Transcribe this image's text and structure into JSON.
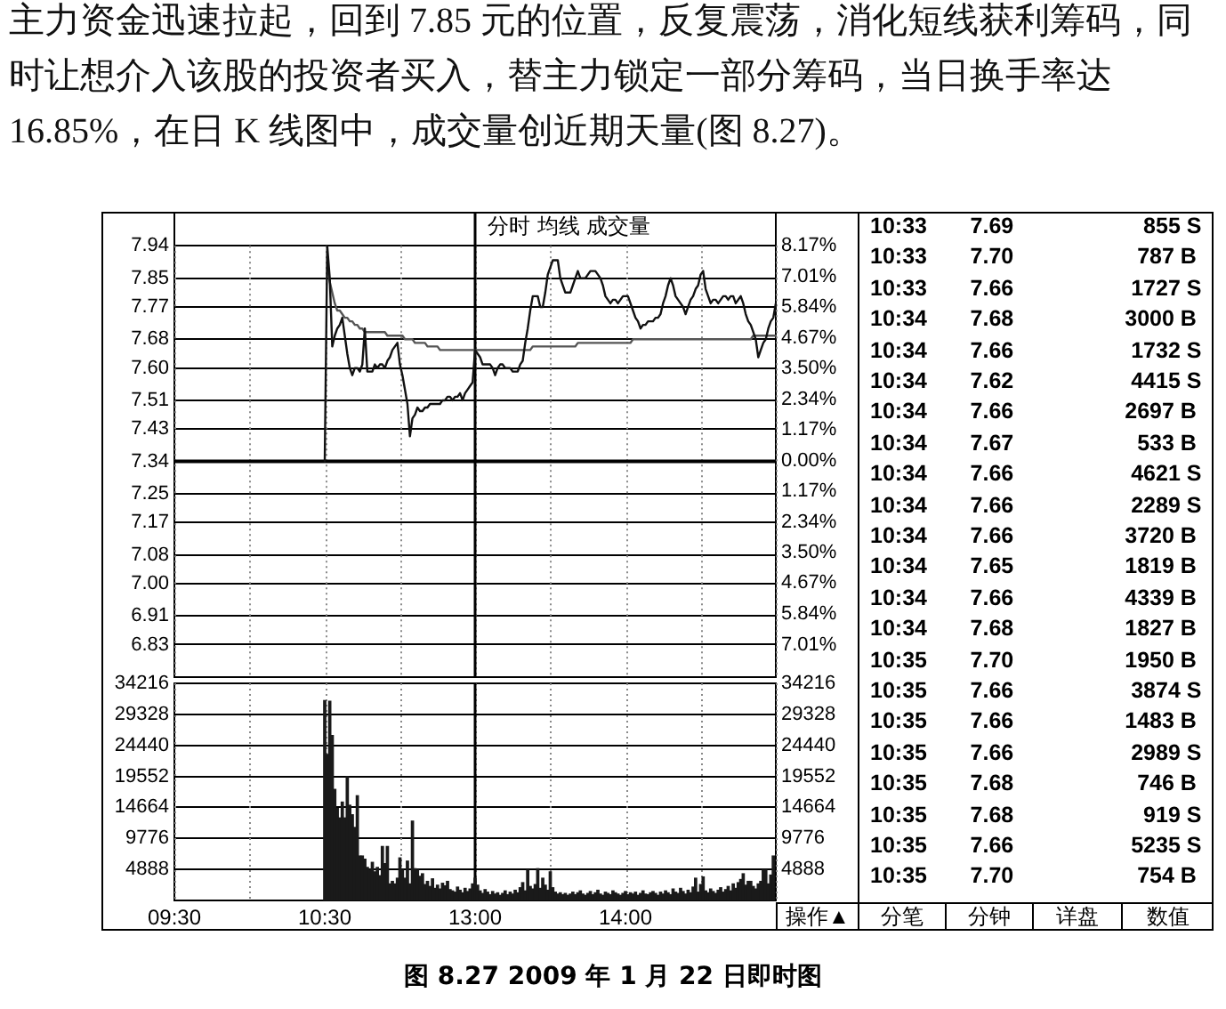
{
  "chart_data": [
    {
      "type": "line",
      "title": "图 8.27 2009 年 1 月 22 日即时图",
      "annotations": [
        "主力资金迅速拉起，回到 7.85 元的位置，反复震荡，消化短线获利筹码，同时让想介入该股的投资者买入，替主力锁定一部分筹码，当日换手率达 16.85%，在日 K 线图中，成交量创近期天量(图 8.27)。",
        "分时 均线 成交量"
      ],
      "categories": [
        "09:30",
        null,
        null,
        null,
        null,
        null,
        null,
        null,
        null,
        null,
        null,
        null,
        null,
        null,
        null,
        null,
        null,
        null,
        null,
        null,
        null,
        null,
        null,
        null,
        null,
        null,
        null,
        null,
        null,
        null,
        null,
        null,
        null,
        null,
        null,
        null,
        null,
        null,
        null,
        null,
        null,
        null,
        null,
        null,
        null,
        null,
        null,
        null,
        null,
        null,
        null,
        null,
        null,
        null,
        null,
        null,
        null,
        null,
        null,
        null,
        "10:30",
        null,
        null,
        null,
        null,
        null,
        null,
        null,
        null,
        null,
        null,
        null,
        null,
        null,
        null,
        null,
        null,
        null,
        null,
        null,
        null,
        null,
        null,
        null,
        null,
        null,
        null,
        null,
        null,
        null,
        null,
        null,
        null,
        null,
        null,
        null,
        null,
        null,
        null,
        null,
        null,
        null,
        null,
        null,
        null,
        null,
        null,
        null,
        null,
        null,
        null,
        null,
        null,
        null,
        null,
        null,
        null,
        null,
        null,
        null,
        "13:00",
        null,
        null,
        null,
        null,
        null,
        null,
        null,
        null,
        null,
        null,
        null,
        null,
        null,
        null,
        null,
        null,
        null,
        null,
        null,
        null,
        null,
        null,
        null,
        null,
        null,
        null,
        null,
        null,
        null,
        null,
        null,
        null,
        null,
        null,
        null,
        null,
        null,
        null,
        null,
        null,
        null,
        null,
        null,
        null,
        null,
        null,
        null,
        null,
        null,
        null,
        null,
        null,
        null,
        null,
        null,
        null,
        null,
        null,
        null,
        "14:00",
        null,
        null,
        null,
        null,
        null,
        null,
        null,
        null,
        null,
        null,
        null,
        null,
        null,
        null,
        null,
        null,
        null,
        null,
        null,
        null,
        null,
        null,
        null,
        null,
        null,
        null,
        null,
        null,
        null,
        null,
        null,
        null,
        null,
        null,
        null,
        null,
        null,
        null,
        null,
        null,
        null,
        null,
        null,
        null,
        null,
        null,
        null,
        null,
        null,
        null,
        null,
        null,
        null,
        null,
        null,
        null,
        null,
        null,
        null,
        null
      ],
      "ylim": [
        6.74,
        8.03
      ],
      "yticks": [
        6.83,
        6.91,
        {
          "value": 7,
          "label": "7.00"
        },
        7.08,
        7.17,
        7.25,
        7.34,
        7.43,
        7.51,
        {
          "value": 7.6,
          "label": "7.60"
        },
        7.68,
        7.77,
        7.85,
        7.94
      ],
      "y2lim": [
        -8.24,
        9.4
      ],
      "y2ticks": [
        {
          "value": -7.01,
          "label": "7.01%"
        },
        {
          "value": -5.84,
          "label": "5.84%"
        },
        {
          "value": -4.67,
          "label": "4.67%"
        },
        {
          "value": -3.5,
          "label": "3.50%"
        },
        {
          "value": -2.34,
          "label": "2.34%"
        },
        {
          "value": -1.17,
          "label": "1.17%"
        },
        {
          "value": 0,
          "label": "0.00%"
        },
        {
          "value": 1.17,
          "label": "1.17%"
        },
        {
          "value": 2.34,
          "label": "2.34%"
        },
        {
          "value": 3.5,
          "label": "3.50%"
        },
        {
          "value": 4.67,
          "label": "4.67%"
        },
        {
          "value": 5.84,
          "label": "5.84%"
        },
        {
          "value": 7.01,
          "label": "7.01%"
        },
        {
          "value": 8.17,
          "label": "8.17%"
        }
      ],
      "tick_labels": "y",
      "grid": true,
      "marker": "none",
      "line_style": "solid",
      "ref_lines": [
        {
          "axis": "y",
          "value": 7.34
        },
        {
          "axis": "x",
          "value": "13:00"
        }
      ],
      "series": [
        {
          "color": "#111111",
          "values": [
            null,
            null,
            null,
            null,
            null,
            null,
            null,
            null,
            null,
            null,
            null,
            null,
            null,
            null,
            null,
            null,
            null,
            null,
            null,
            null,
            null,
            null,
            null,
            null,
            null,
            null,
            null,
            null,
            null,
            null,
            null,
            null,
            null,
            null,
            null,
            null,
            null,
            null,
            null,
            null,
            null,
            null,
            null,
            null,
            null,
            null,
            null,
            null,
            null,
            null,
            null,
            null,
            null,
            null,
            null,
            null,
            null,
            null,
            null,
            null,
            7.34,
            7.94,
            7.85,
            7.66,
            7.69,
            7.71,
            7.72,
            7.74,
            7.69,
            7.64,
            7.6,
            7.58,
            7.6,
            7.6,
            7.59,
            7.61,
            7.71,
            7.59,
            7.59,
            7.59,
            7.61,
            7.6,
            7.61,
            7.61,
            7.6,
            7.62,
            7.63,
            7.65,
            7.66,
            7.67,
            7.61,
            7.58,
            7.54,
            7.5,
            7.41,
            7.46,
            7.47,
            7.49,
            7.48,
            7.48,
            7.49,
            7.49,
            7.5,
            7.5,
            7.5,
            7.5,
            7.5,
            7.51,
            7.51,
            7.52,
            7.52,
            7.51,
            7.52,
            7.52,
            7.53,
            7.51,
            7.53,
            7.54,
            7.55,
            7.56,
            7.65,
            7.64,
            7.63,
            7.61,
            7.61,
            7.61,
            7.61,
            7.6,
            7.58,
            7.6,
            7.61,
            7.61,
            7.6,
            7.6,
            7.6,
            7.59,
            7.59,
            7.59,
            7.61,
            7.62,
            7.67,
            7.71,
            7.76,
            7.8,
            7.8,
            7.8,
            7.77,
            7.77,
            7.81,
            7.86,
            7.88,
            7.9,
            7.9,
            7.9,
            7.85,
            7.83,
            7.81,
            7.81,
            7.81,
            7.83,
            7.85,
            7.87,
            7.85,
            7.85,
            7.85,
            7.86,
            7.87,
            7.87,
            7.87,
            7.86,
            7.85,
            7.83,
            7.8,
            7.79,
            7.78,
            7.79,
            7.79,
            7.78,
            7.79,
            7.8,
            7.8,
            7.8,
            7.78,
            7.76,
            7.74,
            7.73,
            7.71,
            7.72,
            7.72,
            7.73,
            7.73,
            7.73,
            7.74,
            7.74,
            7.75,
            7.78,
            7.8,
            7.83,
            7.85,
            7.83,
            7.8,
            7.79,
            7.78,
            7.77,
            7.75,
            7.77,
            7.79,
            7.8,
            7.82,
            7.83,
            7.86,
            7.87,
            7.82,
            7.8,
            7.78,
            7.79,
            7.79,
            7.78,
            7.79,
            7.8,
            7.8,
            7.79,
            7.8,
            7.8,
            7.78,
            7.79,
            7.8,
            7.78,
            7.75,
            7.73,
            7.72,
            7.7,
            7.68,
            7.63,
            7.65,
            7.67,
            7.68,
            7.71,
            7.73,
            7.74,
            7.78
          ]
        },
        {
          "color": "#555555",
          "values": [
            null,
            null,
            null,
            null,
            null,
            null,
            null,
            null,
            null,
            null,
            null,
            null,
            null,
            null,
            null,
            null,
            null,
            null,
            null,
            null,
            null,
            null,
            null,
            null,
            null,
            null,
            null,
            null,
            null,
            null,
            null,
            null,
            null,
            null,
            null,
            null,
            null,
            null,
            null,
            null,
            null,
            null,
            null,
            null,
            null,
            null,
            null,
            null,
            null,
            null,
            null,
            null,
            null,
            null,
            null,
            null,
            null,
            null,
            null,
            null,
            null,
            7.88,
            7.84,
            7.81,
            7.78,
            7.76,
            7.76,
            7.75,
            7.74,
            7.74,
            7.73,
            7.73,
            7.72,
            7.72,
            7.71,
            7.71,
            7.7,
            7.7,
            7.7,
            7.7,
            7.7,
            7.7,
            7.7,
            7.7,
            7.7,
            7.69,
            7.69,
            7.69,
            7.69,
            7.69,
            7.69,
            7.69,
            7.68,
            7.68,
            7.68,
            7.68,
            7.67,
            7.67,
            7.67,
            7.67,
            7.67,
            7.66,
            7.66,
            7.66,
            7.66,
            7.66,
            7.65,
            7.65,
            7.65,
            7.65,
            7.65,
            7.65,
            7.65,
            7.65,
            7.65,
            7.65,
            7.65,
            7.65,
            7.65,
            7.65,
            7.65,
            7.65,
            7.65,
            7.65,
            7.65,
            7.65,
            7.65,
            7.65,
            7.65,
            7.65,
            7.65,
            7.65,
            7.65,
            7.65,
            7.65,
            7.65,
            7.65,
            7.65,
            7.65,
            7.65,
            7.65,
            7.65,
            7.65,
            7.66,
            7.66,
            7.66,
            7.66,
            7.66,
            7.66,
            7.66,
            7.66,
            7.66,
            7.66,
            7.66,
            7.66,
            7.66,
            7.66,
            7.66,
            7.66,
            7.66,
            7.66,
            7.67,
            7.67,
            7.67,
            7.67,
            7.67,
            7.67,
            7.67,
            7.67,
            7.67,
            7.67,
            7.67,
            7.67,
            7.67,
            7.67,
            7.67,
            7.67,
            7.67,
            7.67,
            7.67,
            7.67,
            7.67,
            7.67,
            7.68,
            7.68,
            7.68,
            7.68,
            7.68,
            7.68,
            7.68,
            7.68,
            7.68,
            7.68,
            7.68,
            7.68,
            7.68,
            7.68,
            7.68,
            7.68,
            7.68,
            7.68,
            7.68,
            7.68,
            7.68,
            7.68,
            7.68,
            7.68,
            7.68,
            7.68,
            7.68,
            7.68,
            7.68,
            7.68,
            7.68,
            7.68,
            7.68,
            7.68,
            7.68,
            7.68,
            7.68,
            7.68,
            7.68,
            7.68,
            7.68,
            7.68,
            7.68,
            7.68,
            7.68,
            7.68,
            7.68,
            7.68,
            7.69,
            7.69,
            7.69,
            7.69,
            7.69,
            7.69,
            7.69,
            7.69,
            7.69,
            7.69
          ]
        }
      ]
    },
    {
      "type": "bar",
      "categories": [
        "09:30",
        null,
        null,
        null,
        null,
        null,
        null,
        null,
        null,
        null,
        null,
        null,
        null,
        null,
        null,
        null,
        null,
        null,
        null,
        null,
        null,
        null,
        null,
        null,
        null,
        null,
        null,
        null,
        null,
        null,
        null,
        null,
        null,
        null,
        null,
        null,
        null,
        null,
        null,
        null,
        null,
        null,
        null,
        null,
        null,
        null,
        null,
        null,
        null,
        null,
        null,
        null,
        null,
        null,
        null,
        null,
        null,
        null,
        null,
        null,
        "10:30",
        null,
        null,
        null,
        null,
        null,
        null,
        null,
        null,
        null,
        null,
        null,
        null,
        null,
        null,
        null,
        null,
        null,
        null,
        null,
        null,
        null,
        null,
        null,
        null,
        null,
        null,
        null,
        null,
        null,
        null,
        null,
        null,
        null,
        null,
        null,
        null,
        null,
        null,
        null,
        null,
        null,
        null,
        null,
        null,
        null,
        null,
        null,
        null,
        null,
        null,
        null,
        null,
        null,
        null,
        null,
        null,
        null,
        null,
        null,
        "13:00",
        null,
        null,
        null,
        null,
        null,
        null,
        null,
        null,
        null,
        null,
        null,
        null,
        null,
        null,
        null,
        null,
        null,
        null,
        null,
        null,
        null,
        null,
        null,
        null,
        null,
        null,
        null,
        null,
        null,
        null,
        null,
        null,
        null,
        null,
        null,
        null,
        null,
        null,
        null,
        null,
        null,
        null,
        null,
        null,
        null,
        null,
        null,
        null,
        null,
        null,
        null,
        null,
        null,
        null,
        null,
        null,
        null,
        null,
        null,
        "14:00",
        null,
        null,
        null,
        null,
        null,
        null,
        null,
        null,
        null,
        null,
        null,
        null,
        null,
        null,
        null,
        null,
        null,
        null,
        null,
        null,
        null,
        null,
        null,
        null,
        null,
        null,
        null,
        null,
        null,
        null,
        null,
        null,
        null,
        null,
        null,
        null,
        null,
        null,
        null,
        null,
        null,
        null,
        null,
        null,
        null,
        null,
        null,
        null,
        null,
        null,
        null,
        null,
        null,
        null,
        null,
        null,
        null,
        null,
        null,
        null
      ],
      "ylim": [
        0,
        34216
      ],
      "yticks": [
        4888,
        9776,
        14664,
        19552,
        24440,
        29328,
        34216
      ],
      "y2lim": [
        0,
        34216
      ],
      "y2ticks": [
        4888,
        9776,
        14664,
        19552,
        24440,
        29328,
        34216
      ],
      "grid": true,
      "ref_lines": [
        {
          "axis": "x",
          "value": "13:00"
        }
      ],
      "series": [
        {
          "color": "#1a1a1a",
          "values": [
            null,
            null,
            null,
            null,
            null,
            null,
            null,
            null,
            null,
            null,
            null,
            null,
            null,
            null,
            null,
            null,
            null,
            null,
            null,
            null,
            null,
            null,
            null,
            null,
            null,
            null,
            null,
            null,
            null,
            null,
            null,
            null,
            null,
            null,
            null,
            null,
            null,
            null,
            null,
            null,
            null,
            null,
            null,
            null,
            null,
            null,
            null,
            null,
            null,
            null,
            null,
            null,
            null,
            null,
            null,
            null,
            null,
            null,
            null,
            null,
            31500,
            23000,
            31400,
            26000,
            17500,
            14500,
            13000,
            15500,
            13000,
            19500,
            15000,
            13500,
            11500,
            16500,
            7000,
            7000,
            6500,
            5200,
            4800,
            6000,
            4500,
            5200,
            3900,
            8500,
            5800,
            8500,
            2600,
            3000,
            2600,
            3500,
            6700,
            4800,
            3500,
            6200,
            2600,
            12500,
            5000,
            4800,
            3800,
            4200,
            2500,
            3000,
            2200,
            3400,
            1900,
            2400,
            1800,
            2700,
            2300,
            3000,
            1700,
            1500,
            1300,
            2100,
            1600,
            1200,
            1900,
            1400,
            1800,
            2600,
            3500,
            2400,
            1500,
            1100,
            1700,
            1300,
            900,
            1400,
            1000,
            1200,
            800,
            1100,
            1500,
            900,
            1300,
            1000,
            1600,
            1200,
            2000,
            2800,
            1500,
            4800,
            2200,
            1800,
            2500,
            5000,
            1900,
            3500,
            2400,
            1600,
            4500,
            2000,
            1300,
            1000,
            1200,
            900,
            1100,
            800,
            1000,
            1300,
            900,
            1200,
            1500,
            1000,
            800,
            1100,
            1400,
            900,
            1200,
            1600,
            1000,
            800,
            1300,
            1100,
            900,
            1500,
            1200,
            1000,
            800,
            1100,
            1400,
            900,
            1200,
            1000,
            1300,
            800,
            1100,
            1500,
            1000,
            900,
            1200,
            1400,
            1100,
            800,
            1300,
            1000,
            1500,
            1200,
            900,
            1800,
            1300,
            1100,
            1900,
            1400,
            1000,
            1600,
            1200,
            2100,
            3500,
            1300,
            2500,
            3700,
            1500,
            1200,
            1800,
            1400,
            1100,
            1600,
            2000,
            1300,
            1700,
            2200,
            1500,
            2600,
            1900,
            2800,
            3300,
            4200,
            2400,
            3000,
            3000,
            2200,
            1800,
            2600,
            3000,
            4800,
            4800,
            2600,
            4000,
            7000,
            null
          ]
        }
      ]
    },
    {
      "type": "other",
      "annotations": [
        "10:33 7.69 855 S",
        "10:33 7.70 787 B",
        "10:33 7.66 1727 S",
        "10:34 7.68 3000 B",
        "10:34 7.66 1732 S",
        "10:34 7.62 4415 S",
        "10:34 7.66 2697 B",
        "10:34 7.67 533 B",
        "10:34 7.66 4621 S",
        "10:34 7.66 2289 S",
        "10:34 7.66 3720 B",
        "10:34 7.65 1819 B",
        "10:34 7.66 4339 B",
        "10:34 7.68 1827 B",
        "10:35 7.70 1950 B",
        "10:35 7.66 3874 S",
        "10:35 7.66 1483 B",
        "10:35 7.66 2989 S",
        "10:35 7.68 746 B",
        "10:35 7.68 919 S",
        "10:35 7.66 5235 S",
        "10:35 7.70 754 B"
      ]
    },
    {
      "type": "other",
      "annotations": [
        "操作▲",
        "分笔",
        "分钟",
        "详盘",
        "数值"
      ]
    }
  ]
}
